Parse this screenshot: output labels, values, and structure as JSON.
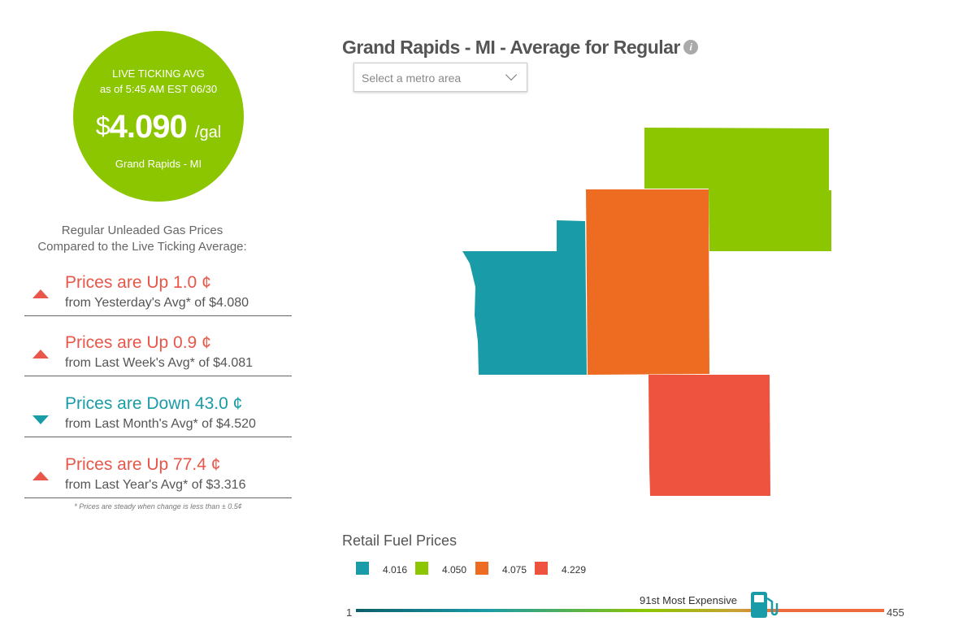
{
  "live_avg": {
    "label": "LIVE TICKING AVG",
    "as_of": "as of   5:45 AM EST 06/30",
    "currency": "$",
    "price": "4.090",
    "unit": "/gal",
    "location": "Grand Rapids - MI",
    "color": "#8cc600"
  },
  "compare": {
    "heading_line1": "Regular Unleaded Gas Prices",
    "heading_line2": "Compared to the Live Ticking Average:",
    "rows": [
      {
        "direction": "up",
        "headline": "Prices are Up 1.0 ¢",
        "sub": "from Yesterday's Avg* of $4.080"
      },
      {
        "direction": "up",
        "headline": "Prices are Up 0.9 ¢",
        "sub": "from Last Week's Avg* of $4.081"
      },
      {
        "direction": "down",
        "headline": "Prices are Down 43.0 ¢",
        "sub": "from Last Month's Avg* of $4.520"
      },
      {
        "direction": "up",
        "headline": "Prices are Up 77.4 ¢",
        "sub": "from Last Year's Avg* of $3.316"
      }
    ],
    "footnote": "* Prices are steady when change is less than ± 0.5¢",
    "up_color": "#e8574a",
    "down_color": "#1a9ba8"
  },
  "map": {
    "title": "Grand Rapids - MI - Average for Regular",
    "info_icon": "info-icon",
    "select_placeholder": "Select a metro area",
    "counties": [
      {
        "color": "#1a9ba8",
        "price": "4.016"
      },
      {
        "color": "#ee6c22",
        "price": "4.075"
      },
      {
        "color": "#8cc600",
        "price": "4.050"
      },
      {
        "color": "#ee5340",
        "price": "4.229"
      }
    ]
  },
  "legend": {
    "title": "Retail Fuel Prices",
    "items": [
      {
        "color": "#1a9ba8",
        "value": "4.016"
      },
      {
        "color": "#8cc600",
        "value": "4.050"
      },
      {
        "color": "#ee6c22",
        "value": "4.075"
      },
      {
        "color": "#ee5340",
        "value": "4.229"
      }
    ]
  },
  "rank": {
    "min": "1",
    "max": "455",
    "value": 91,
    "label": "91st Most Expensive",
    "icon": "gas-pump-icon"
  }
}
